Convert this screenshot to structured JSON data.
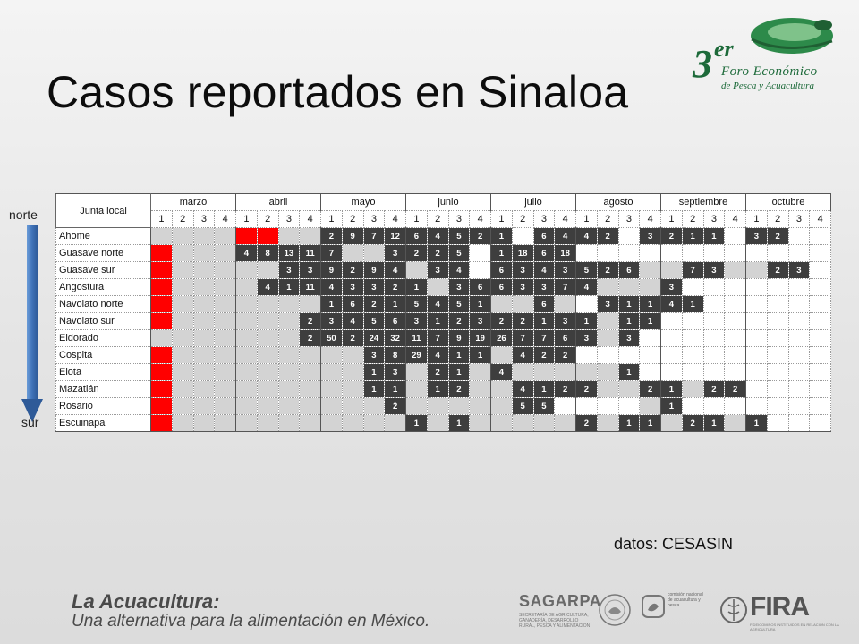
{
  "slide": {
    "title": "Casos reportados en Sinaloa",
    "source_note": "datos: CESASIN"
  },
  "logo": {
    "number": "3",
    "suffix": "er",
    "line1": "Foro Económico",
    "line2": "de Pesca y Acuacultura"
  },
  "axis": {
    "top_label": "norte",
    "bottom_label": "sur",
    "arrow_color": "#4a7fc1"
  },
  "table": {
    "first_header": "Junta local",
    "months": [
      "marzo",
      "abril",
      "mayo",
      "junio",
      "julio",
      "agosto",
      "septiembre",
      "octubre"
    ],
    "weeks": [
      "1",
      "2",
      "3",
      "4"
    ],
    "cell_colors": {
      "red": "#ff0000",
      "gray": "#d3d3d3",
      "dark": "#3e3e3e",
      "blank": "#ffffff"
    },
    "rows": [
      {
        "name": "Ahome",
        "cells": [
          "g",
          "g",
          "g",
          "g",
          "r",
          "r",
          "g",
          "g",
          "2",
          "9",
          "7",
          "12",
          "6",
          "4",
          "5",
          "2",
          "1",
          "",
          "6",
          "4",
          "4",
          "2",
          "",
          "3",
          "2",
          "1",
          "1",
          "",
          "3",
          "2",
          "",
          "",
          "",
          ""
        ]
      },
      {
        "name": "Guasave norte",
        "cells": [
          "r",
          "g",
          "g",
          "g",
          "4",
          "8",
          "13",
          "11",
          "7",
          "g",
          "g",
          "3",
          "2",
          "2",
          "5",
          "",
          "1",
          "18",
          "6",
          "18",
          "",
          "",
          "",
          "",
          "",
          "",
          "",
          "",
          "",
          "",
          "",
          "",
          ""
        ]
      },
      {
        "name": "Guasave sur",
        "cells": [
          "r",
          "g",
          "g",
          "g",
          "g",
          "g",
          "3",
          "3",
          "9",
          "2",
          "9",
          "4",
          "g",
          "3",
          "4",
          "",
          "6",
          "3",
          "4",
          "3",
          "5",
          "2",
          "6",
          "g",
          "g",
          "7",
          "3",
          "g",
          "g",
          "2",
          "3",
          "",
          "",
          ""
        ]
      },
      {
        "name": "Angostura",
        "cells": [
          "r",
          "g",
          "g",
          "g",
          "g",
          "4",
          "1",
          "11",
          "4",
          "3",
          "3",
          "2",
          "1",
          "g",
          "3",
          "6",
          "6",
          "3",
          "3",
          "7",
          "4",
          "g",
          "g",
          "g",
          "3",
          "",
          "",
          "",
          "",
          "",
          "",
          "",
          "",
          ""
        ]
      },
      {
        "name": "Navolato norte",
        "cells": [
          "r",
          "g",
          "g",
          "g",
          "g",
          "g",
          "g",
          "g",
          "1",
          "6",
          "2",
          "1",
          "5",
          "4",
          "5",
          "1",
          "g",
          "g",
          "6",
          "g",
          "",
          "3",
          "1",
          "1",
          "4",
          "1",
          "",
          "",
          "",
          "",
          "",
          "",
          "",
          ""
        ]
      },
      {
        "name": "Navolato sur",
        "cells": [
          "r",
          "g",
          "g",
          "g",
          "g",
          "g",
          "g",
          "2",
          "3",
          "4",
          "5",
          "6",
          "3",
          "1",
          "2",
          "3",
          "2",
          "2",
          "1",
          "3",
          "1",
          "g",
          "1",
          "1",
          "",
          "",
          "",
          "",
          "",
          "",
          "",
          "",
          "",
          ""
        ]
      },
      {
        "name": "Eldorado",
        "cells": [
          "g",
          "g",
          "g",
          "g",
          "g",
          "g",
          "g",
          "2",
          "50",
          "2",
          "24",
          "32",
          "11",
          "7",
          "9",
          "19",
          "26",
          "7",
          "7",
          "6",
          "3",
          "g",
          "3",
          "",
          "",
          "",
          "",
          "",
          "",
          "",
          "",
          "",
          "",
          ""
        ]
      },
      {
        "name": "Cospita",
        "cells": [
          "r",
          "g",
          "g",
          "g",
          "g",
          "g",
          "g",
          "g",
          "g",
          "g",
          "3",
          "8",
          "29",
          "4",
          "1",
          "1",
          "g",
          "4",
          "2",
          "2",
          "",
          "",
          "",
          "",
          "",
          "",
          "",
          "",
          "",
          "",
          "",
          "",
          "",
          ""
        ]
      },
      {
        "name": "Elota",
        "cells": [
          "r",
          "g",
          "g",
          "g",
          "g",
          "g",
          "g",
          "g",
          "g",
          "g",
          "1",
          "3",
          "g",
          "2",
          "1",
          "g",
          "4",
          "g",
          "g",
          "g",
          "g",
          "g",
          "1",
          "",
          "",
          "",
          "",
          "",
          "",
          "",
          "",
          "",
          "",
          ""
        ]
      },
      {
        "name": "Mazatlán",
        "cells": [
          "r",
          "g",
          "g",
          "g",
          "g",
          "g",
          "g",
          "g",
          "g",
          "g",
          "1",
          "1",
          "g",
          "1",
          "2",
          "g",
          "g",
          "4",
          "1",
          "2",
          "2",
          "g",
          "g",
          "2",
          "1",
          "g",
          "2",
          "2",
          "",
          "",
          "",
          "",
          "",
          ""
        ]
      },
      {
        "name": "Rosario",
        "cells": [
          "r",
          "g",
          "g",
          "g",
          "g",
          "g",
          "g",
          "g",
          "g",
          "g",
          "g",
          "2",
          "g",
          "g",
          "g",
          "g",
          "g",
          "5",
          "5",
          "",
          "",
          "",
          "",
          "g",
          "1",
          "",
          "",
          "",
          "",
          "",
          "",
          "",
          "",
          ""
        ]
      },
      {
        "name": "Escuinapa",
        "cells": [
          "r",
          "g",
          "g",
          "g",
          "g",
          "g",
          "g",
          "g",
          "g",
          "g",
          "g",
          "g",
          "1",
          "g",
          "1",
          "g",
          "g",
          "g",
          "g",
          "g",
          "2",
          "g",
          "1",
          "1",
          "g",
          "2",
          "1",
          "g",
          "1",
          "",
          "",
          "",
          "",
          ""
        ]
      }
    ]
  },
  "footer": {
    "line1": "La Acuacultura:",
    "line2": "Una alternativa para la alimentación en México.",
    "sagarpa_name": "SAGARPA",
    "sagarpa_sub": "SECRETARÍA DE AGRICULTURA, GANADERÍA, DESARROLLO RURAL, PESCA Y ALIMENTACIÓN",
    "conapesca_sub": "comisión nacional de acuacultura y pesca",
    "fira_name": "FIRA",
    "fira_sub": "FIDEICOMISOS INSTITUIDOS EN RELACIÓN CON LA AGRICULTURA"
  }
}
